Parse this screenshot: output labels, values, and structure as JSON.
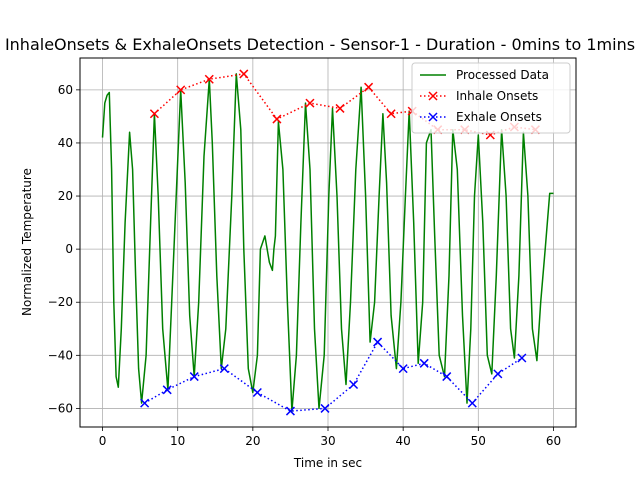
{
  "chart_data": {
    "type": "line",
    "title": "InhaleOnsets & ExhaleOnsets Detection - Sensor-1 - Duration - 0mins to 1mins",
    "xlabel": "Time in sec",
    "ylabel": "Normalized Temperature",
    "xlim": [
      -3,
      63
    ],
    "ylim": [
      -67,
      72
    ],
    "xticks": [
      0,
      10,
      20,
      30,
      40,
      50,
      60
    ],
    "yticks": [
      -60,
      -40,
      -20,
      0,
      20,
      40,
      60
    ],
    "grid": true,
    "legend_position": "top-right",
    "series": [
      {
        "name": "Processed Data",
        "color": "#008000",
        "style": "solid",
        "x": [
          0,
          0.3,
          0.6,
          0.9,
          1.2,
          1.5,
          1.8,
          2.1,
          2.5,
          3.0,
          3.6,
          4.0,
          4.4,
          4.8,
          5.2,
          5.8,
          6.4,
          6.9,
          7.4,
          8.0,
          8.7,
          9.2,
          9.8,
          10.4,
          11.0,
          11.6,
          12.2,
          12.8,
          13.5,
          14.2,
          14.6,
          15.2,
          15.8,
          16.4,
          17.2,
          17.8,
          18.4,
          18.8,
          19.4,
          20.0,
          20.6,
          21.0,
          21.6,
          22.2,
          22.6,
          22.8,
          23.0,
          23.4,
          24.0,
          24.6,
          25.2,
          25.8,
          26.4,
          27.0,
          27.6,
          28.2,
          28.8,
          29.5,
          30.1,
          30.6,
          31.2,
          31.8,
          32.4,
          33.0,
          33.7,
          34.4,
          35.0,
          35.6,
          36.2,
          36.8,
          37.3,
          37.8,
          38.4,
          39.1,
          39.7,
          40.3,
          40.8,
          41.4,
          42.0,
          42.6,
          43.1,
          43.7,
          44.2,
          44.8,
          45.5,
          46.1,
          46.6,
          47.2,
          47.9,
          48.5,
          49.0,
          49.5,
          50.0,
          50.6,
          51.2,
          51.8,
          52.4,
          53.1,
          53.7,
          54.3,
          54.8,
          55.4,
          56.0,
          56.6,
          57.2,
          57.8,
          58.3,
          58.9,
          59.5,
          60.0
        ],
        "values": [
          42,
          55,
          58,
          59,
          30,
          -20,
          -48,
          -52,
          -30,
          10,
          44,
          30,
          -10,
          -45,
          -58,
          -40,
          10,
          51,
          20,
          -30,
          -53,
          -20,
          20,
          60,
          25,
          -25,
          -48,
          -20,
          35,
          64,
          40,
          -10,
          -45,
          -30,
          20,
          66,
          45,
          0,
          -45,
          -54,
          -40,
          0,
          5,
          -5,
          -8,
          0,
          5,
          48,
          30,
          -20,
          -61,
          -40,
          10,
          55,
          30,
          -30,
          -60,
          -40,
          20,
          53,
          20,
          -30,
          -51,
          -20,
          30,
          61,
          20,
          -35,
          -20,
          20,
          51,
          25,
          -25,
          -45,
          -20,
          20,
          52,
          10,
          -43,
          -20,
          40,
          45,
          5,
          -40,
          -48,
          -10,
          45,
          30,
          -25,
          -58,
          -30,
          20,
          43,
          10,
          -40,
          -47,
          -10,
          45,
          20,
          -30,
          -41,
          -10,
          44,
          20,
          -30,
          -42,
          -20,
          0,
          21,
          21
        ]
      },
      {
        "name": "Inhale Onsets",
        "color": "#ff0000",
        "style": "dotted",
        "marker": "x",
        "x": [
          6.9,
          10.4,
          14.2,
          18.8,
          23.2,
          27.6,
          31.6,
          35.4,
          38.4,
          41.2,
          44.6,
          48.2,
          51.6,
          54.8,
          57.6
        ],
        "values": [
          51,
          60,
          64,
          66,
          49,
          55,
          53,
          61,
          51,
          52,
          45,
          45,
          43,
          46,
          45
        ]
      },
      {
        "name": "Exhale Onsets",
        "color": "#0000ff",
        "style": "dotted",
        "marker": "x",
        "x": [
          5.6,
          8.6,
          12.2,
          16.2,
          20.6,
          25.0,
          29.6,
          33.4,
          36.6,
          40.0,
          42.8,
          45.8,
          49.2,
          52.6,
          55.8
        ],
        "values": [
          -58,
          -53,
          -48,
          -45,
          -54,
          -61,
          -60,
          -51,
          -35,
          -45,
          -43,
          -48,
          -58,
          -47,
          -41
        ]
      }
    ]
  }
}
